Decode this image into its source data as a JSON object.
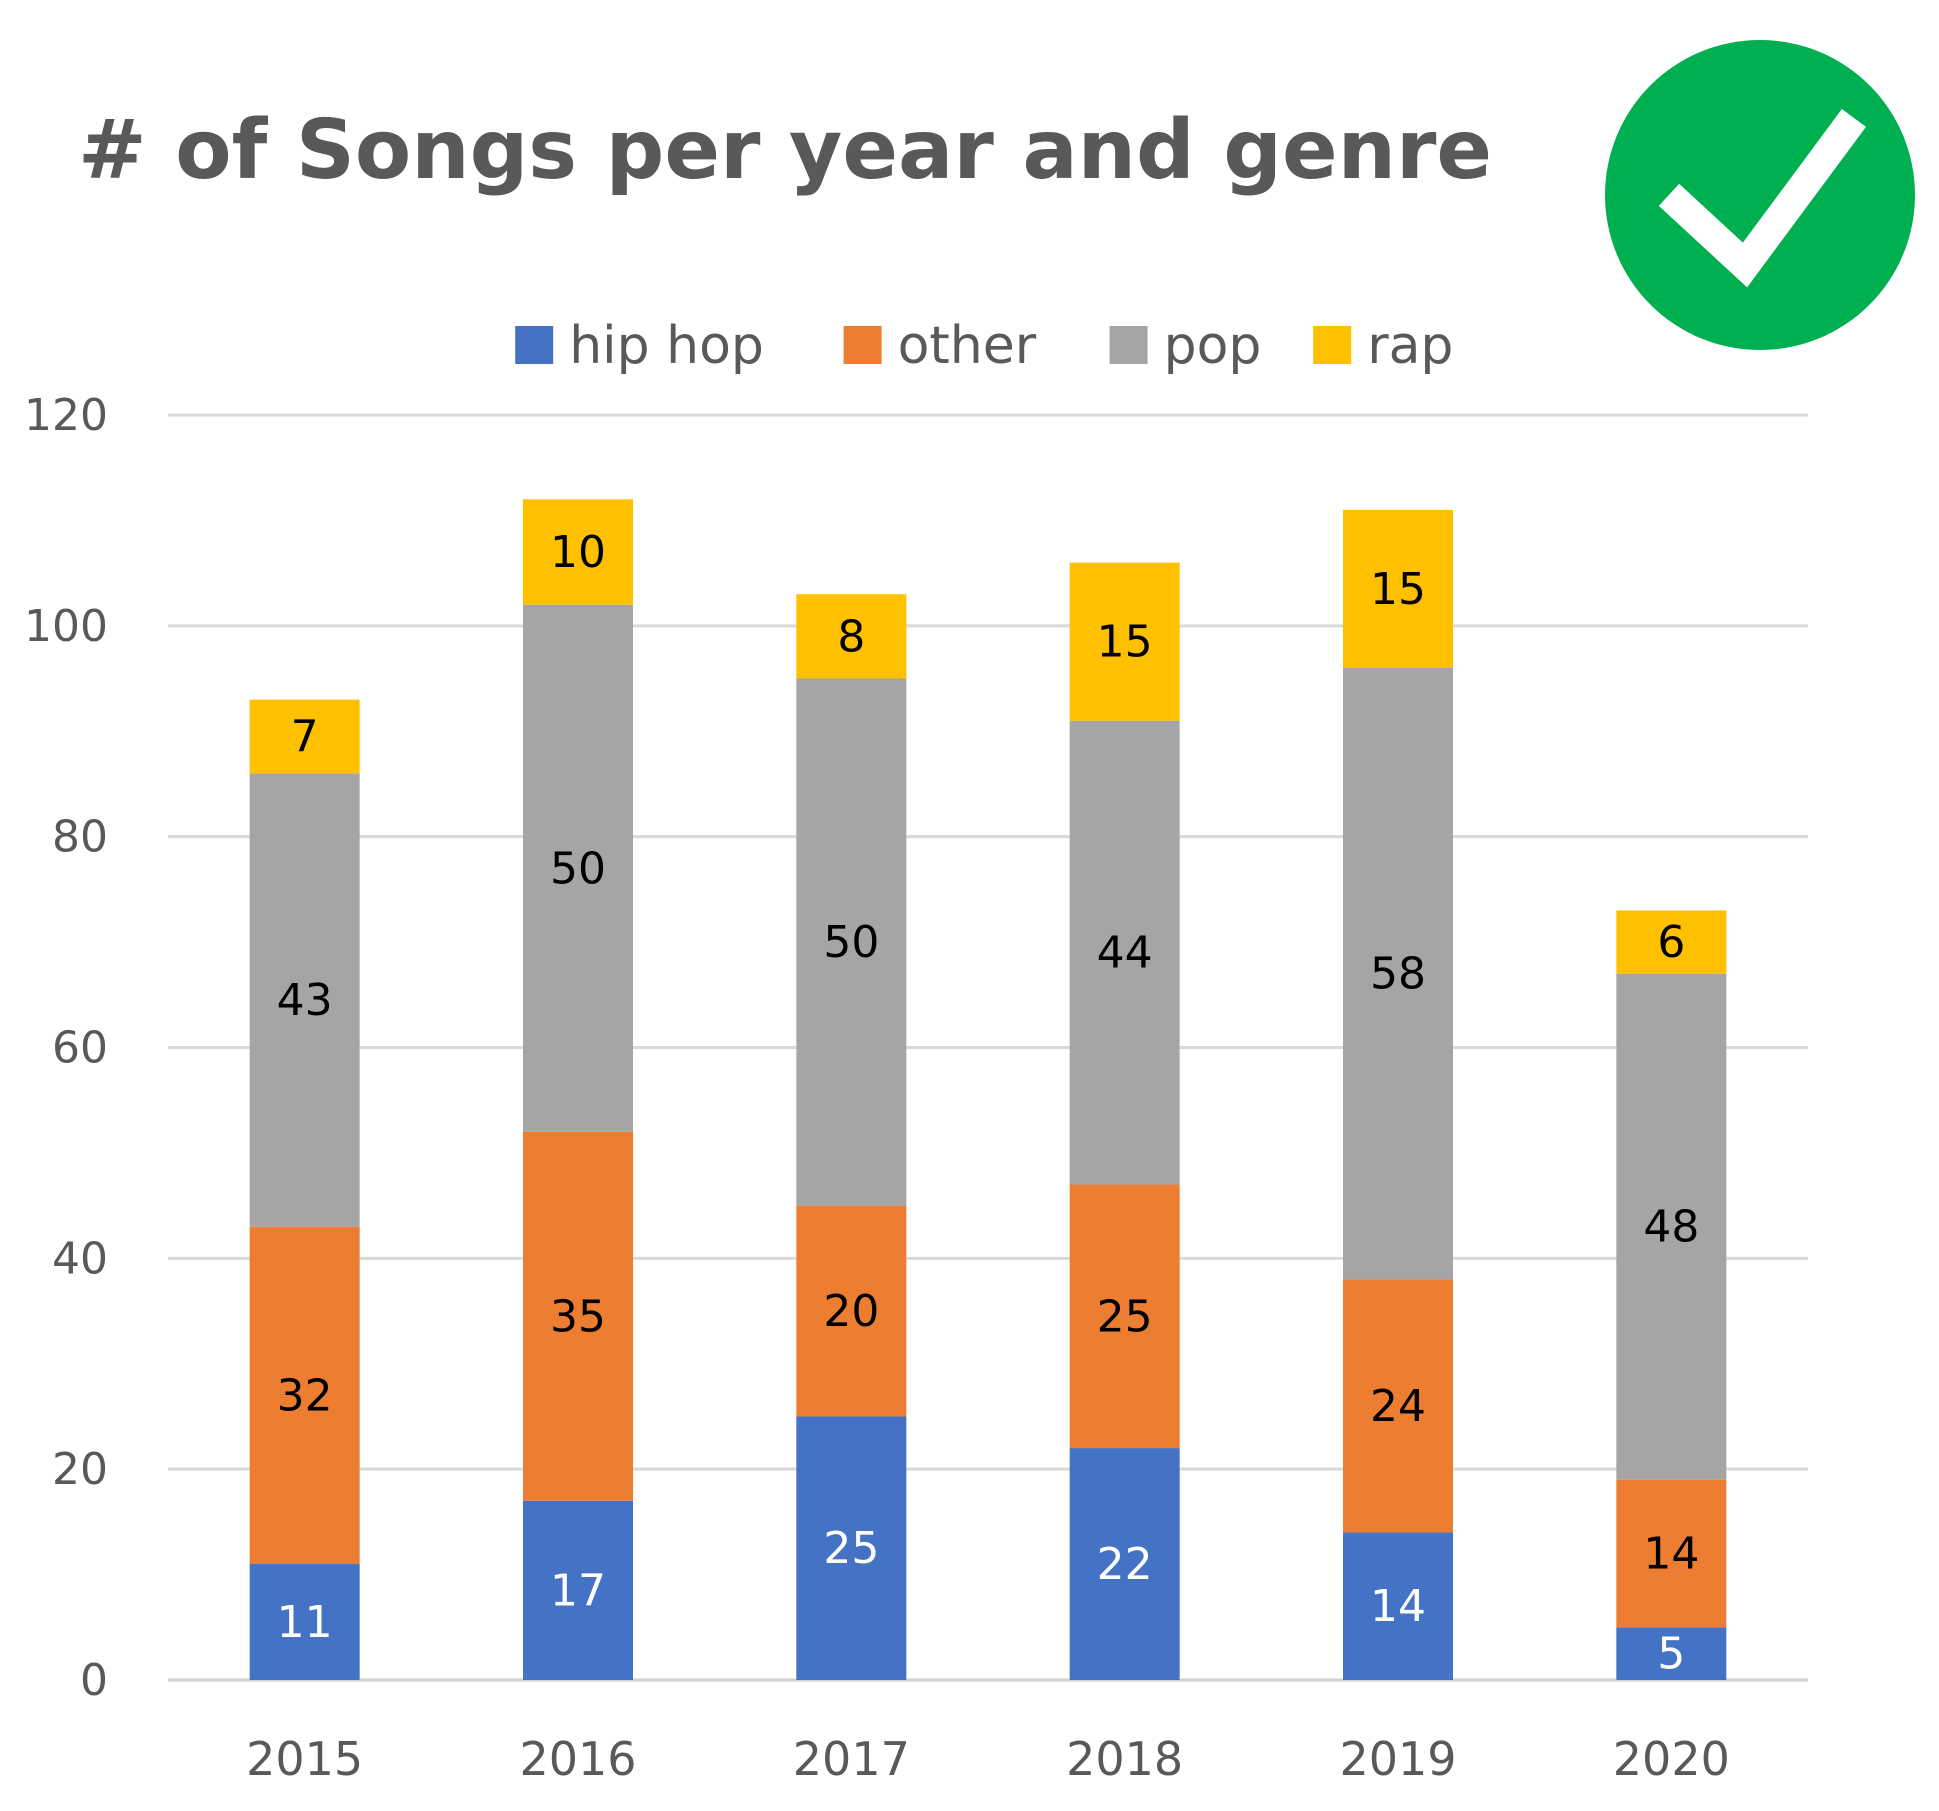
{
  "badge": {
    "icon": "check-icon",
    "color": "#00b050"
  },
  "chart_data": {
    "type": "bar",
    "stacked": true,
    "title": "# of Songs per year and genre",
    "categories": [
      "2015",
      "2016",
      "2017",
      "2018",
      "2019",
      "2020"
    ],
    "series": [
      {
        "name": "hip hop",
        "color": "#4472c4",
        "label_color": "#ffffff",
        "values": [
          11,
          17,
          25,
          22,
          14,
          5
        ]
      },
      {
        "name": "other",
        "color": "#ed7d31",
        "label_color": "#000000",
        "values": [
          32,
          35,
          20,
          25,
          24,
          14
        ]
      },
      {
        "name": "pop",
        "color": "#a5a5a5",
        "label_color": "#000000",
        "values": [
          43,
          50,
          50,
          44,
          58,
          48
        ]
      },
      {
        "name": "rap",
        "color": "#ffc000",
        "label_color": "#000000",
        "values": [
          7,
          10,
          8,
          15,
          15,
          6
        ]
      }
    ],
    "ylim": [
      0,
      120
    ],
    "yticks": [
      0,
      20,
      40,
      60,
      80,
      100,
      120
    ],
    "grid": true,
    "legend_position": "top",
    "data_labels": true
  }
}
